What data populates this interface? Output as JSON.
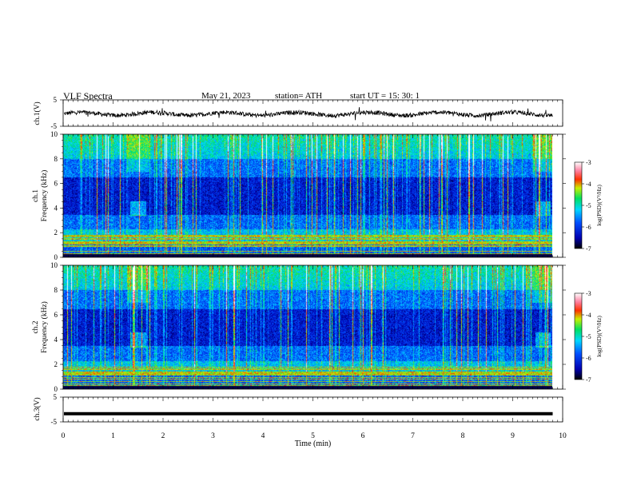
{
  "header": {
    "title": "VLF  Spectra",
    "date": "May 21, 2023",
    "station": "station= ATH",
    "start": "start  UT  =    15: 30: 1"
  },
  "chart_data": [
    {
      "type": "line",
      "ylabel": "ch.1(V)",
      "ylim": [
        -5,
        5
      ],
      "yticks": [
        "5",
        "-5"
      ],
      "description_level": -0.3
    },
    {
      "type": "heatmap",
      "ylabel": "ch.1\nFrequency  (kHz)",
      "ylim": [
        0,
        10
      ],
      "yticks": [
        "0",
        "2",
        "4",
        "6",
        "8",
        "10"
      ],
      "colorbar": {
        "label": "log(PSD)(V²/Hz)",
        "range": [
          -7,
          -3
        ],
        "ticks": [
          "-3",
          "-4",
          "-5",
          "-6",
          "-7"
        ]
      }
    },
    {
      "type": "heatmap",
      "ylabel": "ch.2\nFrequency  (kHz)",
      "ylim": [
        0,
        10
      ],
      "yticks": [
        "0",
        "2",
        "4",
        "6",
        "8",
        "10"
      ],
      "colorbar": {
        "label": "log(PSD)(V²/Hz)",
        "range": [
          -7,
          -3
        ],
        "ticks": [
          "-3",
          "-4",
          "-5",
          "-6",
          "-7"
        ]
      }
    },
    {
      "type": "line",
      "ylabel": "ch.3(V)",
      "ylim": [
        -5,
        5
      ],
      "yticks": [
        "5",
        "-5"
      ],
      "level": -1.7
    }
  ],
  "xaxis": {
    "label": "Time  (min)",
    "range": [
      0,
      10
    ],
    "ticks": [
      "0",
      "1",
      "2",
      "3",
      "4",
      "5",
      "6",
      "7",
      "8",
      "9",
      "10"
    ],
    "data_end": 9.8
  }
}
